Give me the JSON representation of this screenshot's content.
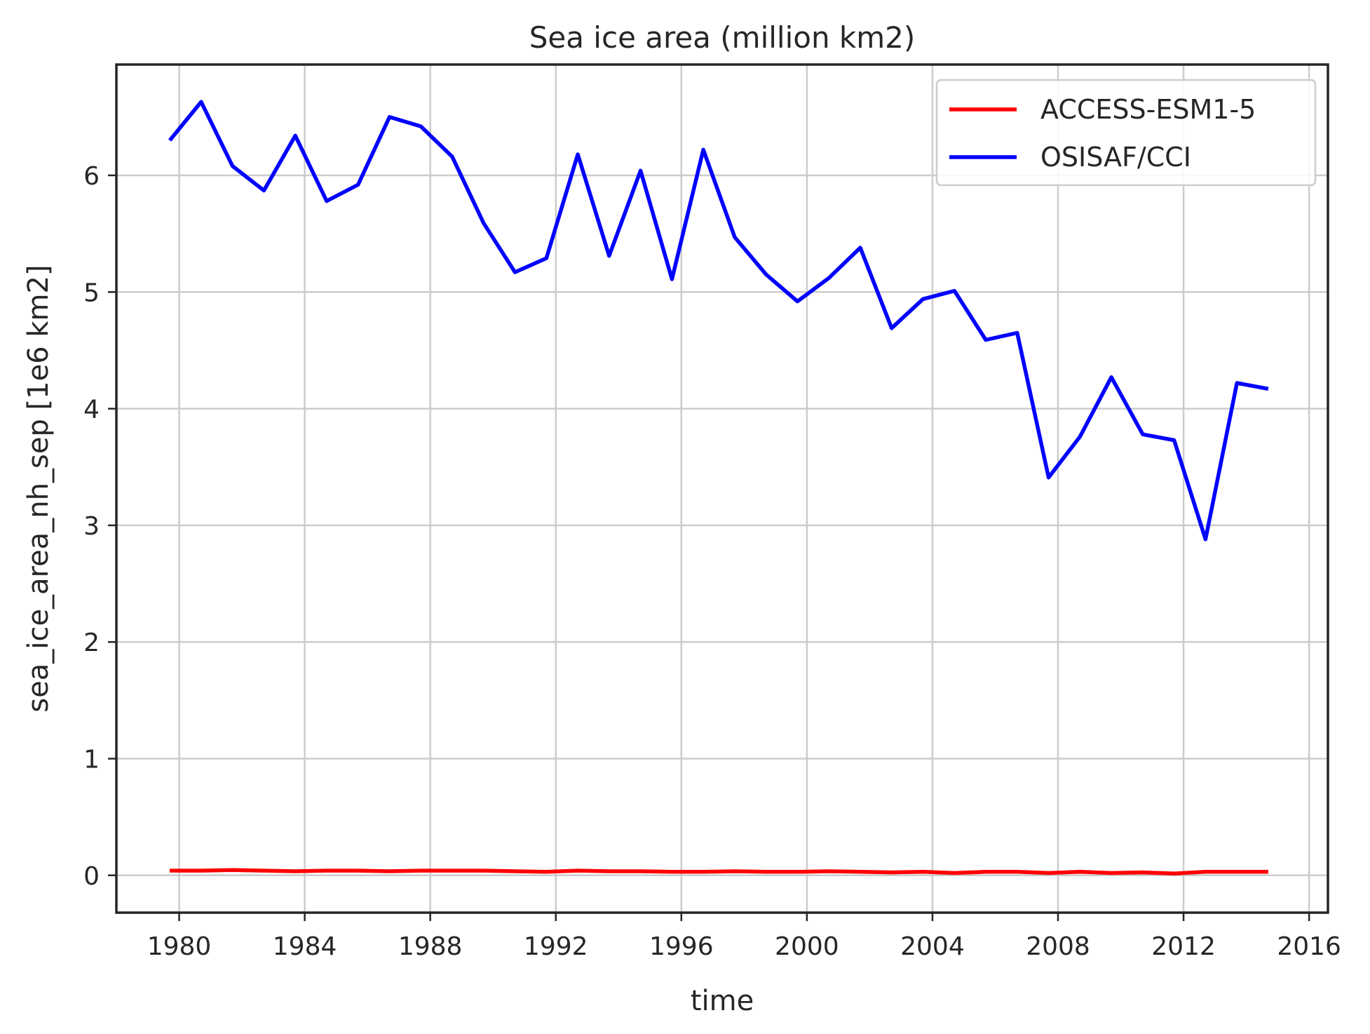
{
  "chart_data": {
    "type": "line",
    "title": "Sea ice area (million km2)",
    "xlabel": "time",
    "ylabel": "sea_ice_area_nh_sep [1e6 km2]",
    "xlim": [
      1978.0,
      2016.6
    ],
    "ylim": [
      -0.32,
      6.95
    ],
    "x_ticks": [
      1980,
      1984,
      1988,
      1992,
      1996,
      2000,
      2004,
      2008,
      2012,
      2016
    ],
    "y_ticks": [
      0,
      1,
      2,
      3,
      4,
      5,
      6
    ],
    "grid": true,
    "legend_position": "top-right",
    "series": [
      {
        "name": "ACCESS-ESM1-5",
        "color": "#ff0000",
        "x": [
          1979.7,
          1980.7,
          1981.7,
          1982.7,
          1983.7,
          1984.7,
          1985.7,
          1986.7,
          1987.7,
          1988.7,
          1989.7,
          1990.7,
          1991.7,
          1992.7,
          1993.7,
          1994.7,
          1995.7,
          1996.7,
          1997.7,
          1998.7,
          1999.7,
          2000.7,
          2001.7,
          2002.7,
          2003.7,
          2004.7,
          2005.7,
          2006.7,
          2007.7,
          2008.7,
          2009.7,
          2010.7,
          2011.7,
          2012.7,
          2013.7,
          2014.7
        ],
        "y": [
          0.04,
          0.04,
          0.045,
          0.04,
          0.035,
          0.04,
          0.04,
          0.035,
          0.04,
          0.04,
          0.04,
          0.035,
          0.03,
          0.04,
          0.035,
          0.035,
          0.03,
          0.03,
          0.035,
          0.03,
          0.03,
          0.035,
          0.03,
          0.025,
          0.03,
          0.02,
          0.03,
          0.03,
          0.02,
          0.03,
          0.02,
          0.025,
          0.015,
          0.03,
          0.03,
          0.03
        ]
      },
      {
        "name": "OSISAF/CCI",
        "color": "#0000ff",
        "x": [
          1979.7,
          1980.7,
          1981.7,
          1982.7,
          1983.7,
          1984.7,
          1985.7,
          1986.7,
          1987.7,
          1988.7,
          1989.7,
          1990.7,
          1991.7,
          1992.7,
          1993.7,
          1994.7,
          1995.7,
          1996.7,
          1997.7,
          1998.7,
          1999.7,
          2000.7,
          2001.7,
          2002.7,
          2003.7,
          2004.7,
          2005.7,
          2006.7,
          2007.7,
          2008.7,
          2009.7,
          2010.7,
          2011.7,
          2012.7,
          2013.7,
          2014.7
        ],
        "y": [
          6.3,
          6.63,
          6.08,
          5.87,
          6.34,
          5.78,
          5.92,
          6.5,
          6.42,
          6.16,
          5.59,
          5.17,
          5.29,
          6.18,
          5.31,
          6.04,
          5.11,
          6.22,
          5.47,
          5.15,
          4.92,
          5.12,
          5.38,
          4.69,
          4.94,
          5.01,
          4.59,
          4.65,
          3.41,
          3.76,
          4.27,
          3.78,
          3.73,
          2.88,
          4.22,
          4.17
        ]
      }
    ]
  }
}
